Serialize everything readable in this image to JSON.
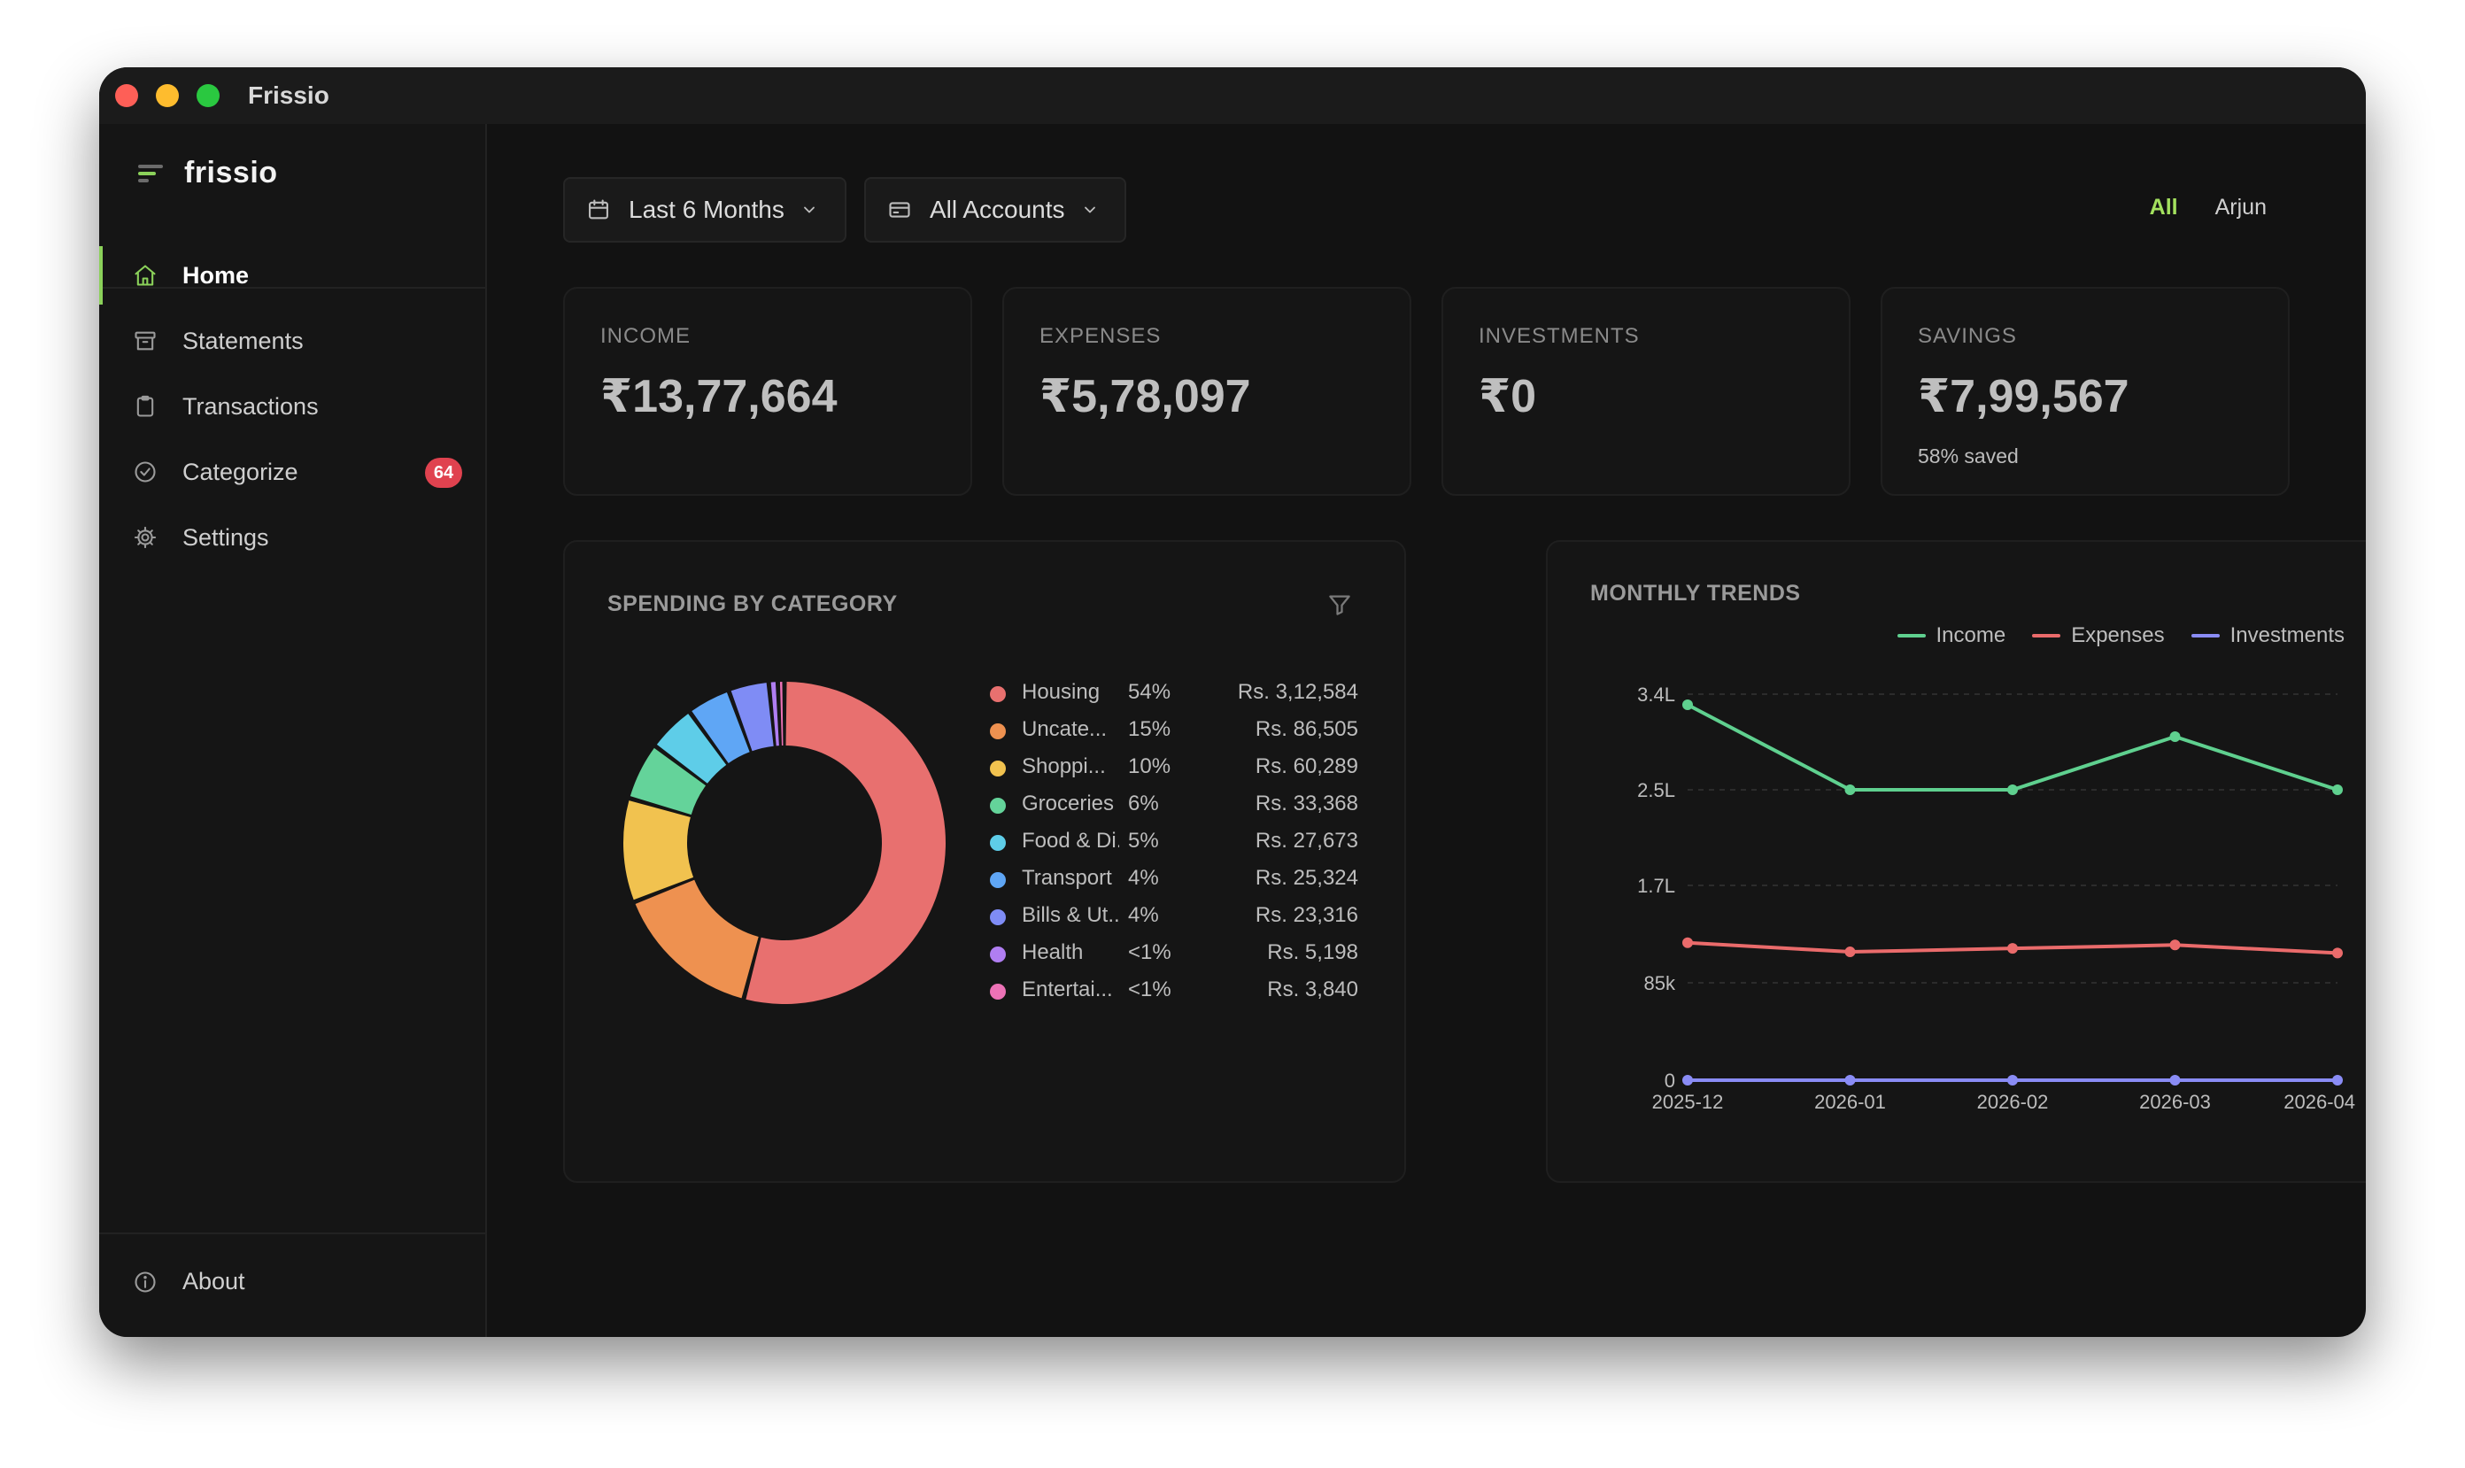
{
  "window": {
    "title": "Frissio"
  },
  "sidebar": {
    "brand": "frissio",
    "items": [
      {
        "label": "Home",
        "icon": "home-icon",
        "active": true
      },
      {
        "label": "Statements",
        "icon": "archive-icon"
      },
      {
        "label": "Transactions",
        "icon": "clipboard-icon"
      },
      {
        "label": "Categorize",
        "icon": "check-circle-icon",
        "badge": "64"
      },
      {
        "label": "Settings",
        "icon": "gear-icon"
      }
    ],
    "footer": {
      "label": "About",
      "icon": "info-icon"
    }
  },
  "filters": {
    "period": "Last 6 Months",
    "accounts": "All Accounts"
  },
  "person_tabs": [
    {
      "label": "All",
      "active": true
    },
    {
      "label": "Arjun"
    }
  ],
  "stats": [
    {
      "label": "INCOME",
      "value": "₹13,77,664"
    },
    {
      "label": "EXPENSES",
      "value": "₹5,78,097"
    },
    {
      "label": "INVESTMENTS",
      "value": "₹0"
    },
    {
      "label": "SAVINGS",
      "value": "₹7,99,567",
      "sub": "58% saved"
    }
  ],
  "colors": {
    "accent": "#8bd15a",
    "income": "#5fd08f",
    "expenses": "#ea6b6b",
    "investments": "#8a8cf5"
  },
  "chart_data": [
    {
      "type": "pie",
      "title": "SPENDING BY CATEGORY",
      "categories": [
        {
          "name": "Housing",
          "pct": "54%",
          "amount": "Rs. 3,12,584",
          "value": 312584,
          "color": "#e8706f"
        },
        {
          "name": "Uncate...",
          "pct": "15%",
          "amount": "Rs. 86,505",
          "value": 86505,
          "color": "#ee9150"
        },
        {
          "name": "Shoppi...",
          "pct": "10%",
          "amount": "Rs. 60,289",
          "value": 60289,
          "color": "#f1c24f"
        },
        {
          "name": "Groceries",
          "pct": "6%",
          "amount": "Rs. 33,368",
          "value": 33368,
          "color": "#64d39a"
        },
        {
          "name": "Food & Di...",
          "pct": "5%",
          "amount": "Rs. 27,673",
          "value": 27673,
          "color": "#5ecde8"
        },
        {
          "name": "Transport",
          "pct": "4%",
          "amount": "Rs. 25,324",
          "value": 25324,
          "color": "#5fa6f5"
        },
        {
          "name": "Bills & Ut...",
          "pct": "4%",
          "amount": "Rs. 23,316",
          "value": 23316,
          "color": "#7f8cf5"
        },
        {
          "name": "Health",
          "pct": "<1%",
          "amount": "Rs. 5,198",
          "value": 5198,
          "color": "#b07ef2"
        },
        {
          "name": "Entertai...",
          "pct": "<1%",
          "amount": "Rs. 3,840",
          "value": 3840,
          "color": "#ec72b6"
        }
      ]
    },
    {
      "type": "line",
      "title": "MONTHLY TRENDS",
      "x": [
        "2025-12",
        "2026-01",
        "2026-02",
        "2026-03",
        "2026-04"
      ],
      "yticks": [
        {
          "label": "0",
          "value": 0
        },
        {
          "label": "85k",
          "value": 85000
        },
        {
          "label": "1.7L",
          "value": 170000
        },
        {
          "label": "2.5L",
          "value": 250000
        },
        {
          "label": "3.4L",
          "value": 340000
        }
      ],
      "ylim": [
        0,
        340000
      ],
      "grid": true,
      "legend_position": "top-right",
      "series": [
        {
          "name": "Income",
          "color": "#5fd08f",
          "values": [
            330000,
            250000,
            250000,
            300000,
            250000
          ]
        },
        {
          "name": "Expenses",
          "color": "#ea6b6b",
          "values": [
            120000,
            112000,
            115000,
            118000,
            111000
          ]
        },
        {
          "name": "Investments",
          "color": "#8a8cf5",
          "values": [
            0,
            0,
            0,
            0,
            0
          ]
        }
      ]
    }
  ]
}
